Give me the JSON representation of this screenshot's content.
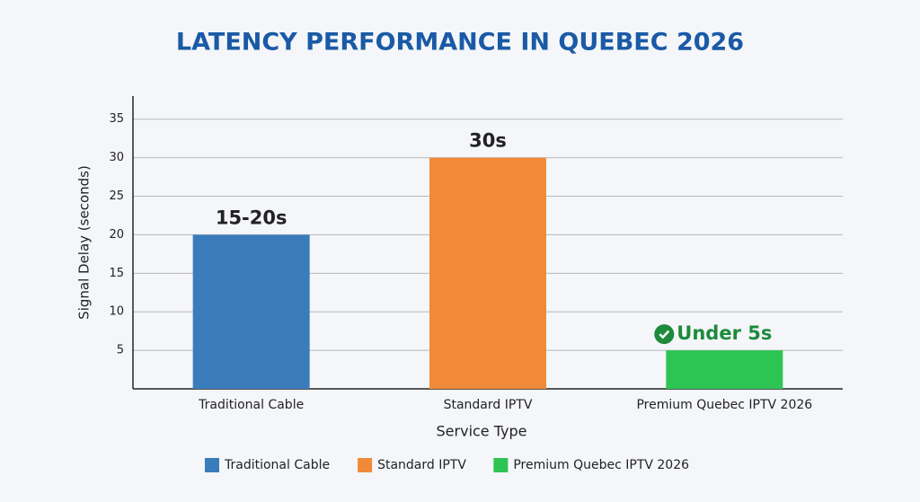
{
  "chart_data": {
    "type": "bar",
    "title": "LATENCY PERFORMANCE IN QUEBEC 2026",
    "x_label": "Service Type",
    "y_label": "Signal Delay (seconds)",
    "categories": [
      "Traditional Cable",
      "Standard IPTV",
      "Premium Quebec IPTV 2026"
    ],
    "values": [
      20,
      30,
      5
    ],
    "value_labels": [
      "15-20s",
      "30s",
      "Under 5s"
    ],
    "colors": [
      "#3a7bbb",
      "#f08a38",
      "#2ec454"
    ],
    "value_label_colors": [
      "#222222",
      "#222222",
      "#1e8a3c"
    ],
    "ylim": [
      0,
      38
    ],
    "yticks": [
      5,
      10,
      15,
      20,
      25,
      30,
      35
    ],
    "grid": true,
    "legend": "bottom"
  }
}
